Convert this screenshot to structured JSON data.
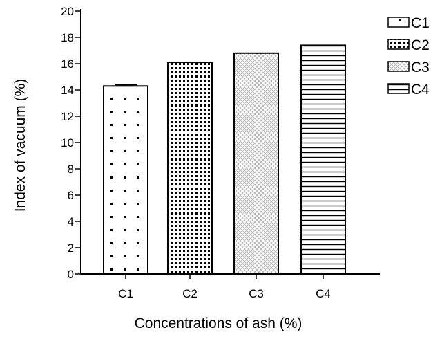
{
  "chart_data": {
    "type": "bar",
    "title": "",
    "xlabel": "Concentrations of ash (%)",
    "ylabel": "Index of vacuum (%)",
    "categories": [
      "C1",
      "C2",
      "C3",
      "C4"
    ],
    "values": [
      14.3,
      16.1,
      16.8,
      17.4
    ],
    "error": [
      0.1,
      0,
      0,
      0
    ],
    "patterns": [
      "sparse-dots",
      "dense-dots",
      "crosshatch-light",
      "horizontal-lines"
    ],
    "ylim": [
      0,
      20
    ],
    "yticks": [
      0,
      2,
      4,
      6,
      8,
      10,
      12,
      14,
      16,
      18,
      20
    ],
    "grid": false,
    "legend": {
      "position": "top-right",
      "entries": [
        "C1",
        "C2",
        "C3",
        "C4"
      ]
    },
    "colors": {
      "bar_stroke": "#000000",
      "axis": "#000000",
      "light_pattern": "#b8b8b8"
    }
  }
}
